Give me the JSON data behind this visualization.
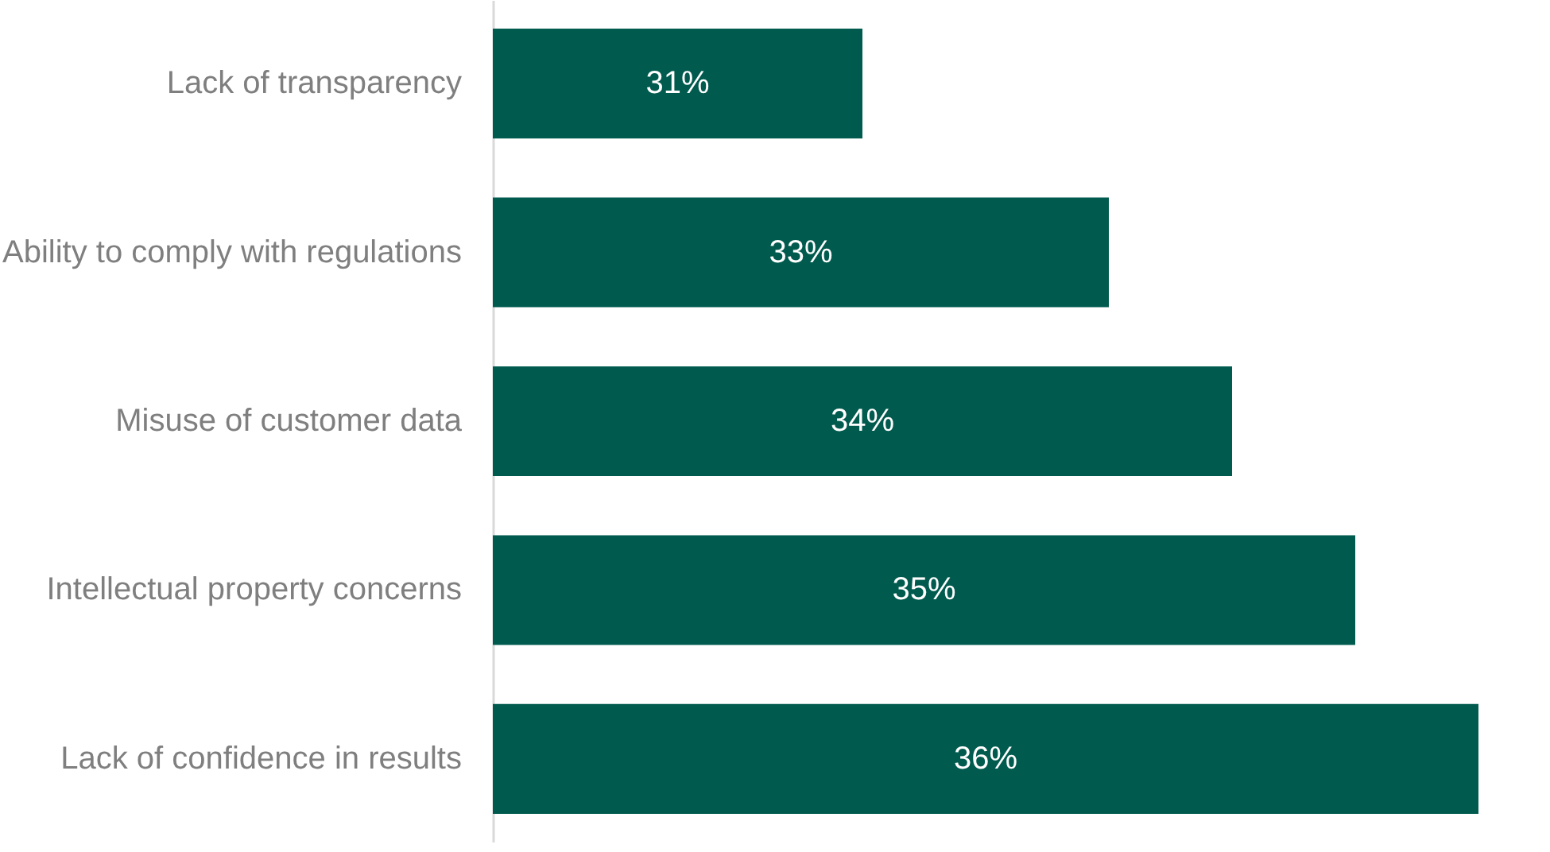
{
  "chart_data": {
    "type": "bar",
    "orientation": "horizontal",
    "categories": [
      "Lack of transparency",
      "Ability to comply with regulations",
      "Misuse of customer data",
      "Intellectual property concerns",
      "Lack of confidence in results"
    ],
    "values": [
      31,
      33,
      34,
      35,
      36
    ],
    "value_labels": [
      "31%",
      "33%",
      "34%",
      "35%",
      "36%"
    ],
    "color": "#005a4e",
    "xlim": [
      28,
      36
    ]
  }
}
